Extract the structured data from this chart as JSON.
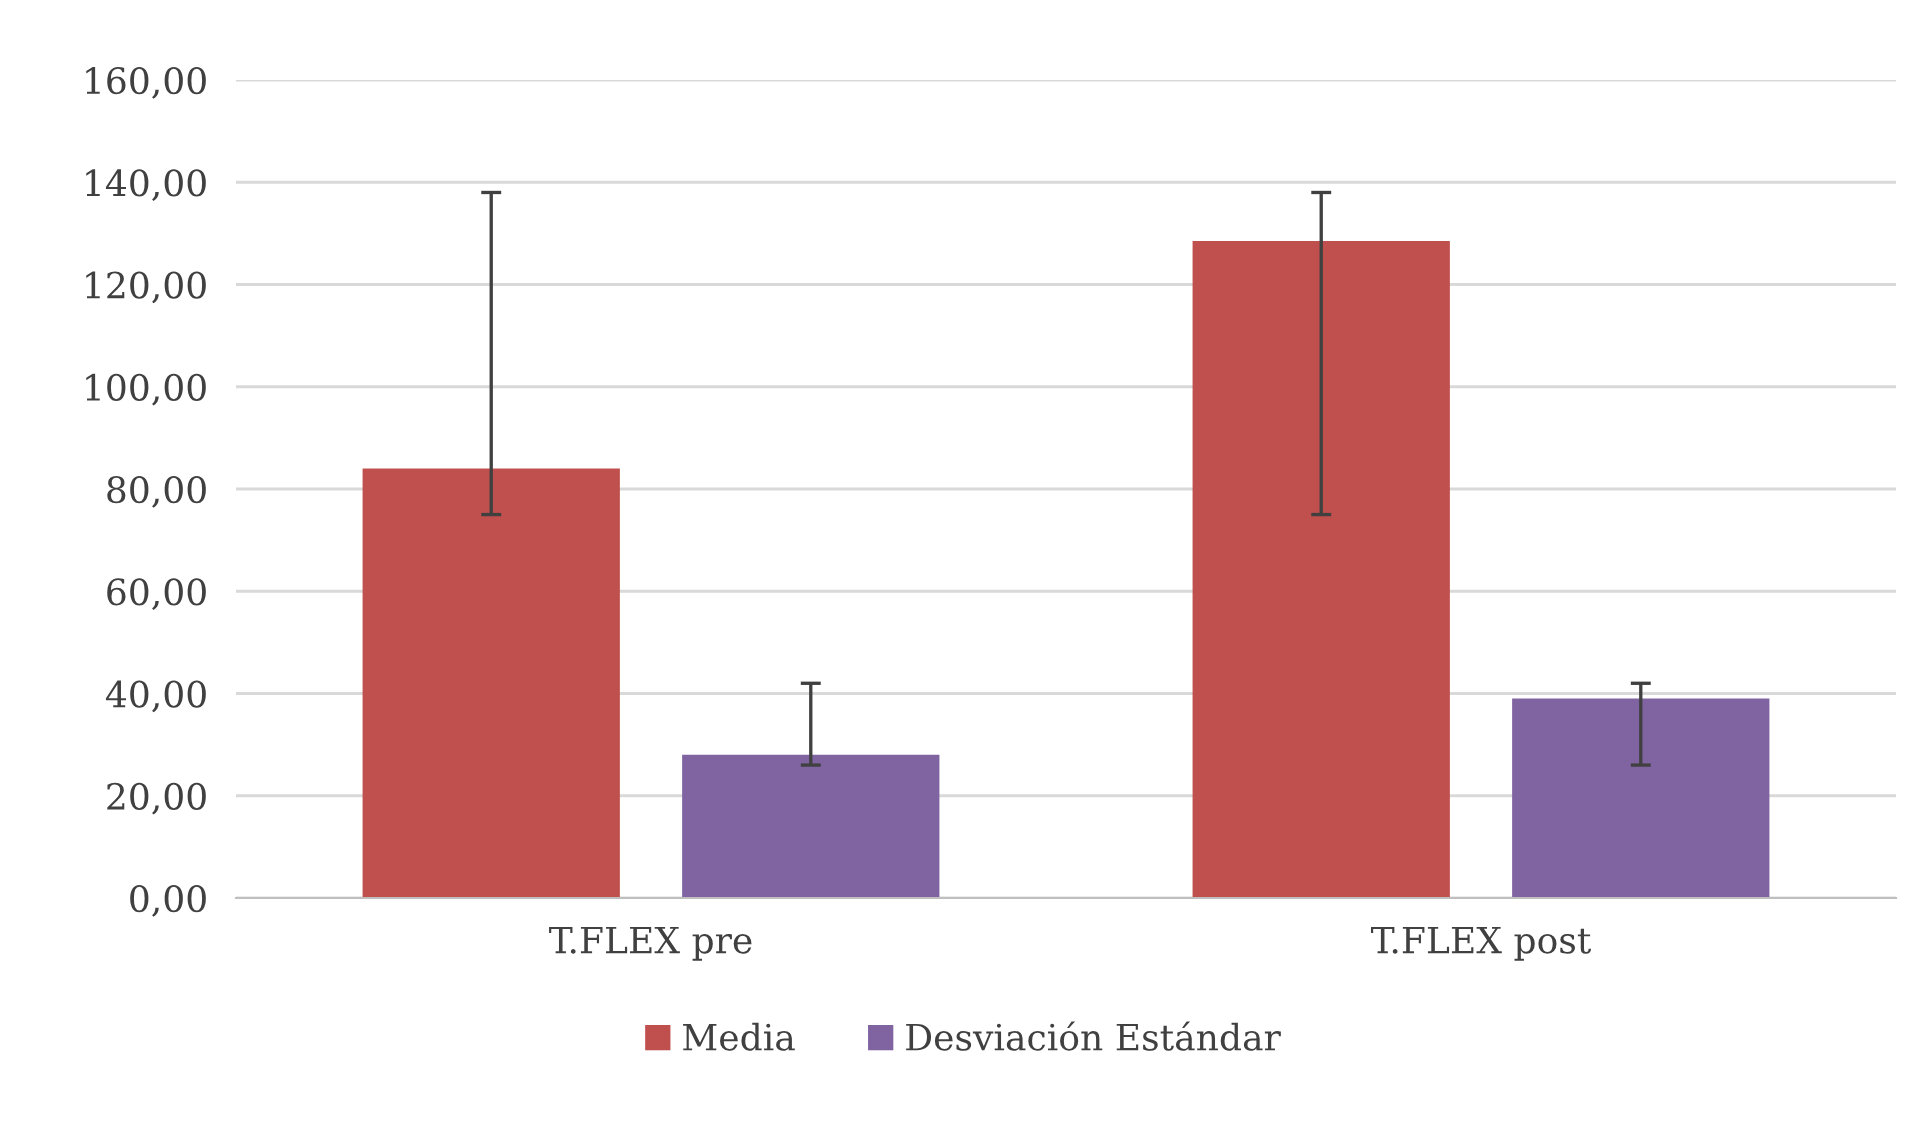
{
  "chart_data": {
    "type": "bar",
    "categories": [
      "T.FLEX pre",
      "T.FLEX post"
    ],
    "series": [
      {
        "name": "Media",
        "color": "#c0504d",
        "values": [
          84,
          128.5
        ],
        "errors": [
          [
            75,
            138
          ],
          [
            75,
            138
          ]
        ]
      },
      {
        "name": "Desviación Estándar",
        "color": "#8064a2",
        "values": [
          28,
          39
        ],
        "errors": [
          [
            26,
            42
          ],
          [
            26,
            42
          ]
        ]
      }
    ],
    "ylim": [
      0,
      160
    ],
    "yticks": [
      {
        "value": 0,
        "label": "0,00"
      },
      {
        "value": 20,
        "label": "20,00"
      },
      {
        "value": 40,
        "label": "40,00"
      },
      {
        "value": 60,
        "label": "60,00"
      },
      {
        "value": 80,
        "label": "80,00"
      },
      {
        "value": 100,
        "label": "100,00"
      },
      {
        "value": 120,
        "label": "120,00"
      },
      {
        "value": 140,
        "label": "140,00"
      },
      {
        "value": 160,
        "label": "160,00"
      }
    ],
    "grid": "y",
    "legend": "bottom"
  }
}
